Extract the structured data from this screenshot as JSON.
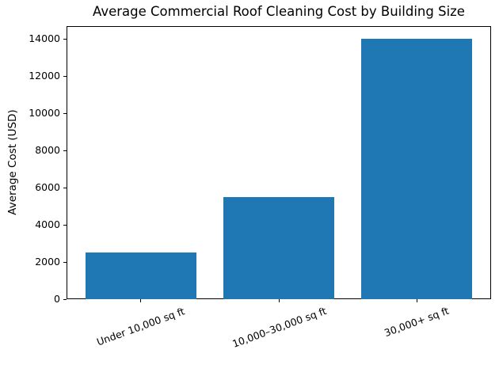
{
  "chart_data": {
    "type": "bar",
    "title": "Average Commercial Roof Cleaning Cost by Building Size",
    "categories": [
      "Under 10,000 sq ft",
      "10,000–30,000 sq ft",
      "30,000+ sq ft"
    ],
    "values": [
      2500,
      5500,
      14000
    ],
    "xlabel": "",
    "ylabel": "Average Cost (USD)",
    "ylim": [
      0,
      14700
    ],
    "yticks": [
      0,
      2000,
      4000,
      6000,
      8000,
      10000,
      12000,
      14000
    ],
    "bar_color": "#1f77b4",
    "axis_color": "#000000",
    "text_color": "#000000",
    "grid": false,
    "legend": false,
    "x_tick_rotation_deg": 20
  }
}
